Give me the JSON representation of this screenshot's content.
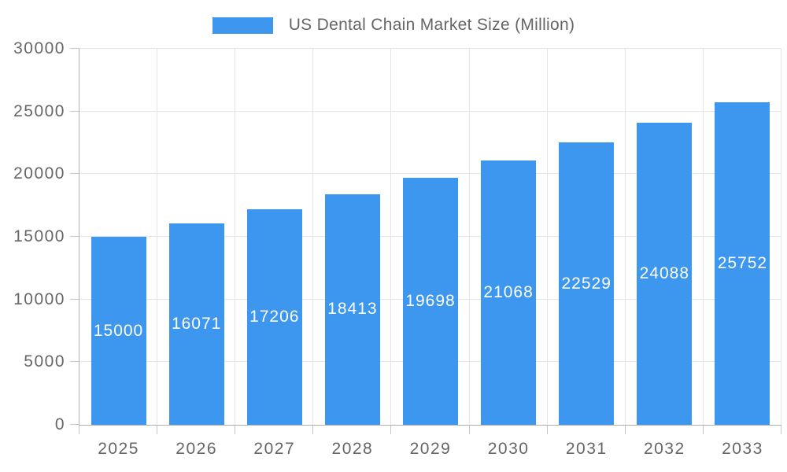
{
  "legend": {
    "label": "US Dental Chain Market Size (Million)",
    "swatch_color": "#3d97ee"
  },
  "colors": {
    "bar": "#3d97ee",
    "grid": "#e5e5e5",
    "axis_line": "#b0b0b0",
    "tick_mark": "#c6c6c6",
    "axis_text": "#666666",
    "value_label_text": "#ffffff",
    "background": "#ffffff"
  },
  "chart_data": {
    "type": "bar",
    "title": "US Dental Chain Market Size (Million)",
    "series_name": "US Dental Chain Market Size (Million)",
    "categories": [
      "2025",
      "2026",
      "2027",
      "2028",
      "2029",
      "2030",
      "2031",
      "2032",
      "2033"
    ],
    "values": [
      15000,
      16071,
      17206,
      18413,
      19698,
      21068,
      22529,
      24088,
      25752
    ],
    "xlabel": "",
    "ylabel": "",
    "ylim": [
      0,
      30000
    ],
    "yticks": [
      0,
      5000,
      10000,
      15000,
      20000,
      25000,
      30000
    ],
    "grid": true,
    "legend_position": "top",
    "value_labels_position": "inside-center"
  }
}
